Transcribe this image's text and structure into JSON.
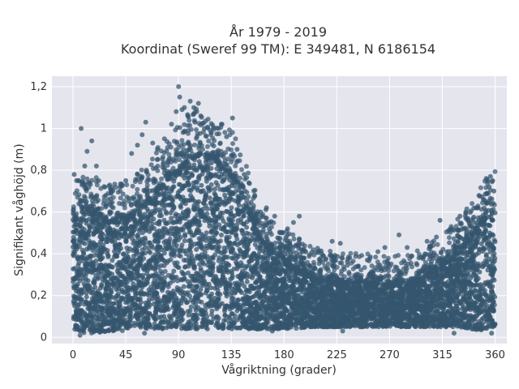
{
  "chart_data": {
    "type": "scatter",
    "title": "År 1979 - 2019",
    "subtitle": "Koordinat (Sweref 99 TM): E 349481, N 6186154",
    "xlabel": "Vågriktning (grader)",
    "ylabel": "Signifikant våghöjd (m)",
    "xlim": [
      -18,
      370
    ],
    "ylim": [
      -0.03,
      1.25
    ],
    "xticks": [
      0,
      45,
      90,
      135,
      180,
      225,
      270,
      315,
      360
    ],
    "xtick_labels": [
      "0",
      "45",
      "90",
      "135",
      "180",
      "225",
      "270",
      "315",
      "360"
    ],
    "yticks": [
      0,
      0.2,
      0.4,
      0.6,
      0.8,
      1.0,
      1.2
    ],
    "ytick_labels": [
      "0",
      "0,2",
      "0,4",
      "0,6",
      "0,8",
      "1",
      "1,2"
    ],
    "grid": true,
    "legend": "none",
    "marker_color": "#34566e",
    "background_color": "#e5e5ee",
    "envelope": {
      "x": [
        0,
        10,
        20,
        30,
        40,
        50,
        60,
        70,
        80,
        90,
        100,
        110,
        120,
        130,
        140,
        150,
        160,
        170,
        180,
        190,
        200,
        210,
        220,
        230,
        240,
        250,
        260,
        270,
        280,
        290,
        300,
        310,
        320,
        330,
        340,
        350,
        360
      ],
      "core_top": [
        0.55,
        0.6,
        0.58,
        0.55,
        0.55,
        0.58,
        0.62,
        0.68,
        0.75,
        0.8,
        0.85,
        0.88,
        0.85,
        0.8,
        0.74,
        0.6,
        0.47,
        0.41,
        0.37,
        0.33,
        0.3,
        0.28,
        0.27,
        0.26,
        0.26,
        0.26,
        0.25,
        0.25,
        0.26,
        0.26,
        0.29,
        0.32,
        0.36,
        0.42,
        0.48,
        0.56,
        0.6
      ],
      "core_bottom": [
        0.04,
        0.02,
        0.02,
        0.03,
        0.03,
        0.04,
        0.04,
        0.04,
        0.04,
        0.04,
        0.04,
        0.04,
        0.04,
        0.04,
        0.04,
        0.04,
        0.04,
        0.04,
        0.04,
        0.04,
        0.05,
        0.05,
        0.05,
        0.05,
        0.05,
        0.05,
        0.05,
        0.05,
        0.05,
        0.05,
        0.05,
        0.05,
        0.05,
        0.05,
        0.04,
        0.03,
        0.04
      ]
    },
    "outliers": [
      {
        "x": 7,
        "y": 1.0
      },
      {
        "x": 1,
        "y": 0.78
      },
      {
        "x": 3,
        "y": 0.75
      },
      {
        "x": 10,
        "y": 0.82
      },
      {
        "x": 12,
        "y": 0.89
      },
      {
        "x": 16,
        "y": 0.94
      },
      {
        "x": 20,
        "y": 0.82
      },
      {
        "x": 22,
        "y": 0.75
      },
      {
        "x": 28,
        "y": 0.68
      },
      {
        "x": 33,
        "y": 0.7
      },
      {
        "x": 40,
        "y": 0.72
      },
      {
        "x": 45,
        "y": 0.75
      },
      {
        "x": 50,
        "y": 0.88
      },
      {
        "x": 55,
        "y": 0.92
      },
      {
        "x": 59,
        "y": 0.97
      },
      {
        "x": 62,
        "y": 1.03
      },
      {
        "x": 68,
        "y": 0.93
      },
      {
        "x": 72,
        "y": 0.9
      },
      {
        "x": 78,
        "y": 0.95
      },
      {
        "x": 84,
        "y": 1.02
      },
      {
        "x": 88,
        "y": 1.08
      },
      {
        "x": 90,
        "y": 1.2
      },
      {
        "x": 91,
        "y": 1.15
      },
      {
        "x": 93,
        "y": 1.09
      },
      {
        "x": 95,
        "y": 1.1
      },
      {
        "x": 98,
        "y": 1.06
      },
      {
        "x": 100,
        "y": 1.13
      },
      {
        "x": 103,
        "y": 1.1
      },
      {
        "x": 104,
        "y": 1.03
      },
      {
        "x": 107,
        "y": 1.12
      },
      {
        "x": 109,
        "y": 1.06
      },
      {
        "x": 112,
        "y": 1.0
      },
      {
        "x": 118,
        "y": 0.98
      },
      {
        "x": 124,
        "y": 1.0
      },
      {
        "x": 127,
        "y": 1.02
      },
      {
        "x": 131,
        "y": 0.96
      },
      {
        "x": 136,
        "y": 1.05
      },
      {
        "x": 140,
        "y": 0.9
      },
      {
        "x": 146,
        "y": 0.78
      },
      {
        "x": 150,
        "y": 0.74
      },
      {
        "x": 155,
        "y": 0.68
      },
      {
        "x": 160,
        "y": 0.6
      },
      {
        "x": 165,
        "y": 0.62
      },
      {
        "x": 168,
        "y": 0.55
      },
      {
        "x": 172,
        "y": 0.58
      },
      {
        "x": 178,
        "y": 0.5
      },
      {
        "x": 183,
        "y": 0.52
      },
      {
        "x": 188,
        "y": 0.55
      },
      {
        "x": 193,
        "y": 0.58
      },
      {
        "x": 197,
        "y": 0.38
      },
      {
        "x": 202,
        "y": 0.34
      },
      {
        "x": 212,
        "y": 0.4
      },
      {
        "x": 221,
        "y": 0.46
      },
      {
        "x": 228,
        "y": 0.45
      },
      {
        "x": 236,
        "y": 0.38
      },
      {
        "x": 243,
        "y": 0.34
      },
      {
        "x": 251,
        "y": 0.37
      },
      {
        "x": 260,
        "y": 0.41
      },
      {
        "x": 266,
        "y": 0.43
      },
      {
        "x": 278,
        "y": 0.49
      },
      {
        "x": 285,
        "y": 0.43
      },
      {
        "x": 295,
        "y": 0.38
      },
      {
        "x": 302,
        "y": 0.46
      },
      {
        "x": 310,
        "y": 0.48
      },
      {
        "x": 313,
        "y": 0.56
      },
      {
        "x": 322,
        "y": 0.52
      },
      {
        "x": 330,
        "y": 0.58
      },
      {
        "x": 335,
        "y": 0.6
      },
      {
        "x": 338,
        "y": 0.55
      },
      {
        "x": 345,
        "y": 0.62
      },
      {
        "x": 350,
        "y": 0.66
      },
      {
        "x": 353,
        "y": 0.69
      },
      {
        "x": 355,
        "y": 0.72
      },
      {
        "x": 356,
        "y": 0.77
      },
      {
        "x": 358,
        "y": 0.75
      },
      {
        "x": 359,
        "y": 0.7
      },
      {
        "x": 61,
        "y": 0.02
      },
      {
        "x": 170,
        "y": 0.03
      },
      {
        "x": 325,
        "y": 0.02
      },
      {
        "x": 230,
        "y": 0.03
      },
      {
        "x": 6,
        "y": 0.01
      },
      {
        "x": 357,
        "y": 0.02
      }
    ]
  }
}
